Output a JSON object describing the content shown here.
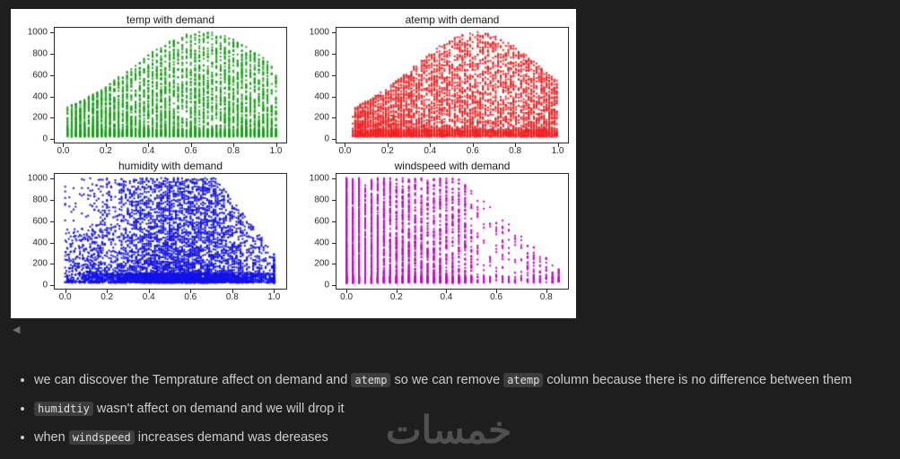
{
  "collapse_button": {
    "glyph": "◀"
  },
  "watermark": {
    "text": "خمسات"
  },
  "chart_data": [
    {
      "type": "scatter",
      "title": "temp with demand",
      "xlabel": "",
      "ylabel": "",
      "color": "#16a016",
      "xlim": [
        -0.04,
        1.04
      ],
      "ylim": [
        -40,
        1050
      ],
      "xticks": {
        "values": [
          0.0,
          0.2,
          0.4,
          0.6,
          0.8,
          1.0
        ],
        "labels": [
          "0.0",
          "0.2",
          "0.4",
          "0.6",
          "0.8",
          "1.0"
        ]
      },
      "yticks": {
        "values": [
          0,
          200,
          400,
          600,
          800,
          1000
        ],
        "labels": [
          "0",
          "200",
          "400",
          "600",
          "800",
          "1000"
        ]
      },
      "summary": "demand rises with temp, peaks near temp 0.6-0.7 at ~1000, declines after; dense band of low demand (<100) at all temps",
      "gen": {
        "kind": "arch",
        "seed": 7,
        "count": 4800,
        "grid": 0.02,
        "xmin": 0.02,
        "xmax": 1.0,
        "peak": 0.66,
        "spread": 0.34,
        "base": 140,
        "top": 1010,
        "pow": 1.45,
        "bottom_frac": 0.22,
        "bottom_max": 70
      }
    },
    {
      "type": "scatter",
      "title": "atemp with demand",
      "xlabel": "",
      "ylabel": "",
      "color": "#ee2222",
      "xlim": [
        -0.04,
        1.04
      ],
      "ylim": [
        -40,
        1050
      ],
      "xticks": {
        "values": [
          0.0,
          0.2,
          0.4,
          0.6,
          0.8,
          1.0
        ],
        "labels": [
          "0.0",
          "0.2",
          "0.4",
          "0.6",
          "0.8",
          "1.0"
        ]
      },
      "yticks": {
        "values": [
          0,
          200,
          400,
          600,
          800,
          1000
        ],
        "labels": [
          "0",
          "200",
          "400",
          "600",
          "800",
          "1000"
        ]
      },
      "summary": "nearly identical to temp plot: demand peaks near atemp 0.6-0.75 at ~1000, dense low-demand band throughout",
      "gen": {
        "kind": "arch",
        "seed": 13,
        "count": 5200,
        "grid": 0.012,
        "xmin": 0.04,
        "xmax": 1.0,
        "peak": 0.62,
        "spread": 0.3,
        "base": 150,
        "top": 1010,
        "pow": 1.4,
        "bottom_frac": 0.2,
        "bottom_max": 70
      }
    },
    {
      "type": "scatter",
      "title": "humidity with demand",
      "xlabel": "",
      "ylabel": "",
      "color": "#1212e8",
      "xlim": [
        -0.05,
        1.05
      ],
      "ylim": [
        -40,
        1050
      ],
      "xticks": {
        "values": [
          0.0,
          0.2,
          0.4,
          0.6,
          0.8,
          1.0
        ],
        "labels": [
          "0.0",
          "0.2",
          "0.4",
          "0.6",
          "0.8",
          "1.0"
        ]
      },
      "yticks": {
        "values": [
          0,
          200,
          400,
          600,
          800,
          1000
        ],
        "labels": [
          "0",
          "200",
          "400",
          "600",
          "800",
          "1000"
        ]
      },
      "summary": "dense cloud for humidity 0.2-0.9 reaching demand ~1000 mid-range; max demand falls for humidity > 0.75; heavy low-demand band across full range",
      "gen": {
        "kind": "cloud",
        "seed": 21,
        "count": 6500,
        "grid": 0.01,
        "center": 0.55,
        "sd2": 0.42,
        "xmaxv": 1.0,
        "left_frac": 0.05,
        "left_max": 0.18,
        "left_ymax": 520,
        "drop_start": 0.72,
        "drop_rate": 2600,
        "floor": 200,
        "top": 1010,
        "pow": 1.6,
        "bottom_frac": 0.3,
        "bottom_max": 90
      }
    },
    {
      "type": "scatter",
      "title": "windspeed with demand",
      "xlabel": "",
      "ylabel": "",
      "color": "#cc00cc",
      "xlim": [
        -0.04,
        0.88
      ],
      "ylim": [
        -40,
        1050
      ],
      "xticks": {
        "values": [
          0.0,
          0.2,
          0.4,
          0.6,
          0.8
        ],
        "labels": [
          "0.0",
          "0.2",
          "0.4",
          "0.6",
          "0.8"
        ]
      },
      "yticks": {
        "values": [
          0,
          200,
          400,
          600,
          800,
          1000
        ],
        "labels": [
          "0",
          "200",
          "400",
          "600",
          "800",
          "1000"
        ]
      },
      "summary": "discrete vertical columns; dense tall columns (demand to ~1000) for windspeed < 0.45, sparser and lower demand as windspeed increases, few isolated points beyond 0.6",
      "gen": {
        "kind": "columns",
        "seed": 33,
        "count": 4200,
        "grid": 0.025,
        "xmaxv": 0.86,
        "xpow": 2.0,
        "resample_above": 0.5,
        "resample_keep": 0.3,
        "drop_start": 0.45,
        "drop_rate": 2200,
        "floor": 120,
        "top": 1010,
        "pow": 1.35,
        "bottom_frac": 0.25,
        "bottom_max": 60
      }
    }
  ],
  "notes": {
    "bullets": [
      {
        "parts": [
          {
            "text": "we can discover the Temprature affect on demand and "
          },
          {
            "code": "atemp"
          },
          {
            "text": " so we can remove "
          },
          {
            "code": "atemp"
          },
          {
            "text": " column because there is no difference between them"
          }
        ]
      },
      {
        "parts": [
          {
            "code": "humidtiy"
          },
          {
            "text": " wasn't affect on demand and we will drop it"
          }
        ]
      },
      {
        "parts": [
          {
            "text": "when "
          },
          {
            "code": "windspeed"
          },
          {
            "text": " increases demand was dereases"
          }
        ]
      }
    ]
  }
}
